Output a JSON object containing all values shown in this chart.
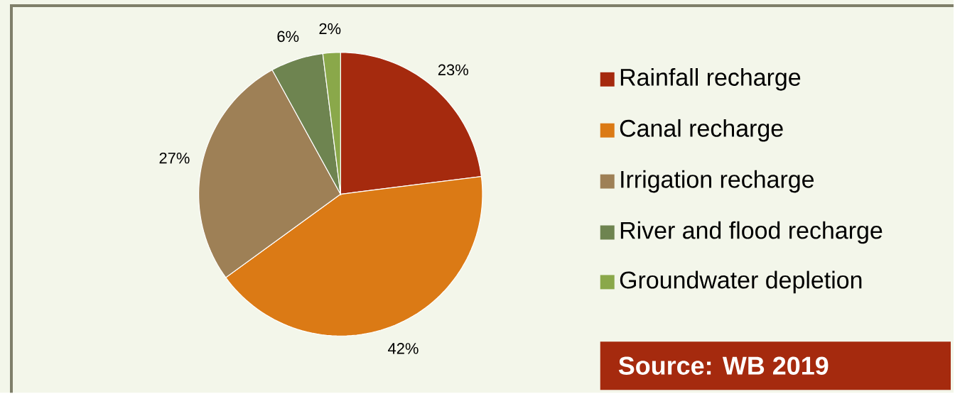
{
  "chart_data": {
    "type": "pie",
    "categories": [
      "Rainfall recharge",
      "Canal recharge",
      "Irrigation recharge",
      "River and flood recharge",
      "Groundwater depletion"
    ],
    "values": [
      23,
      42,
      27,
      6,
      2
    ],
    "value_labels": [
      "23%",
      "42%",
      "27%",
      "6%",
      "2%"
    ],
    "colors": [
      "#a52a0e",
      "#db7a15",
      "#9e8056",
      "#6e8450",
      "#8aa84a"
    ],
    "legend": "right",
    "annotations": [
      "Source: WB 2019"
    ]
  }
}
